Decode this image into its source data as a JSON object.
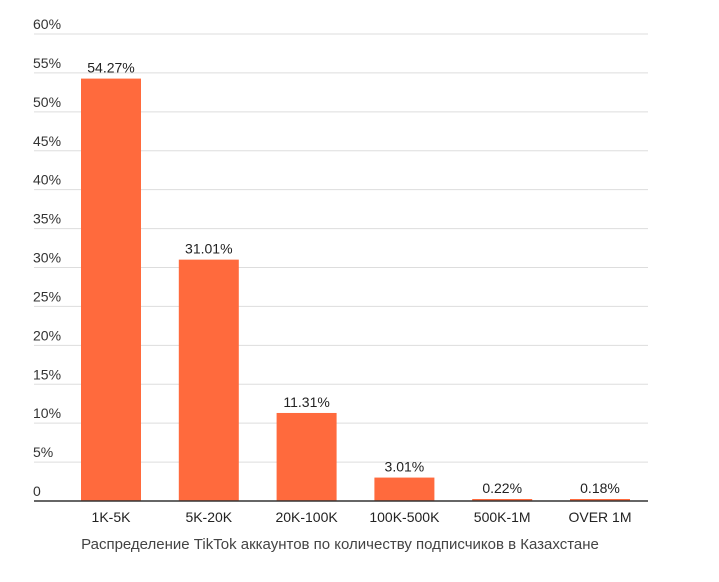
{
  "chart_data": {
    "type": "bar",
    "categories": [
      "1K-5K",
      "5K-20K",
      "20K-100K",
      "100K-500K",
      "500K-1M",
      "OVER 1M"
    ],
    "values": [
      54.27,
      31.01,
      11.31,
      3.01,
      0.22,
      0.18
    ],
    "data_labels": [
      "54.27%",
      "31.01%",
      "11.31%",
      "3.01%",
      "0.22%",
      "0.18%"
    ],
    "y_ticks": [
      "0",
      "5%",
      "10%",
      "15%",
      "20%",
      "25%",
      "30%",
      "35%",
      "40%",
      "45%",
      "50%",
      "55%",
      "60%"
    ],
    "ylim": [
      0,
      60
    ],
    "grid": true,
    "bar_color": "#ff6a3d",
    "caption": "Распределение TikTok аккаунтов по количеству подписчиков в Казахстане"
  }
}
